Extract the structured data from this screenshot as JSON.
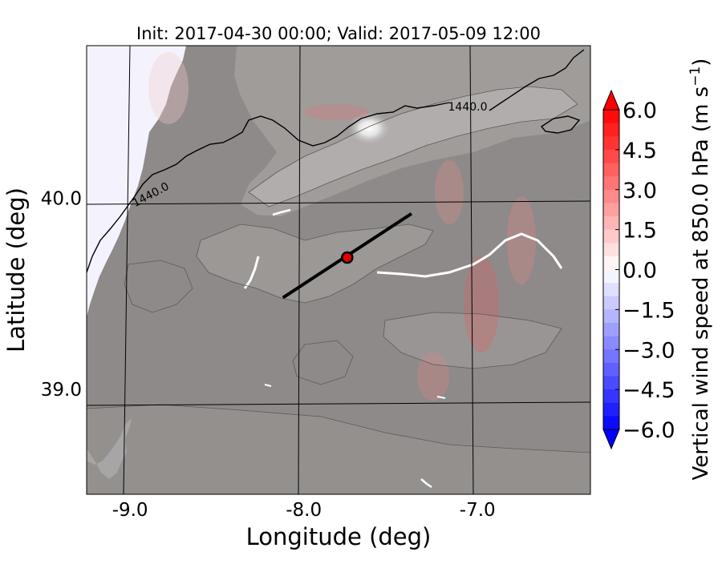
{
  "chart_data": {
    "type": "heatmap",
    "title": "Init: 2017-04-30 00:00; Valid: 2017-05-09 12:00",
    "xlabel": "Longitude (deg)",
    "ylabel": "Latitude (deg)",
    "xlim": [
      -9.25,
      -6.35
    ],
    "ylim": [
      38.45,
      40.8
    ],
    "x_ticks": [
      {
        "value": -9.0,
        "label": "-9.0"
      },
      {
        "value": -8.0,
        "label": "-8.0"
      },
      {
        "value": -7.0,
        "label": "-7.0"
      }
    ],
    "y_ticks": [
      {
        "value": 39.0,
        "label": "39.0"
      },
      {
        "value": 40.0,
        "label": "40.0"
      }
    ],
    "contour_labels": [
      {
        "text": "1440.0",
        "lon": -8.95,
        "lat": 40.02
      },
      {
        "text": "1440.0",
        "lon": -7.53,
        "lat": 40.52
      }
    ],
    "cross_section": {
      "start": {
        "lon": -8.12,
        "lat": 39.48
      },
      "end": {
        "lon": -7.38,
        "lat": 39.92
      },
      "marker": {
        "lon": -7.75,
        "lat": 39.69
      }
    },
    "colorbar": {
      "label": "Vertical wind speed at 850.0 hPa (m s$^{-1}$)",
      "label_main": "Vertical wind speed at 850.0 hPa (m s",
      "label_sup": "−1",
      "label_close": ")",
      "min": -6.0,
      "max": 6.0,
      "tick_values": [
        6.0,
        4.5,
        3.0,
        1.5,
        0.0,
        -1.5,
        -3.0,
        -4.5,
        -6.0
      ],
      "tick_labels": [
        "6.0",
        "4.5",
        "3.0",
        "1.5",
        "0.0",
        "−1.5",
        "−3.0",
        "−4.5",
        "−6.0"
      ],
      "cmap": "bwr",
      "extend": "both",
      "color_max": "#ff0000",
      "color_mid": "#ffffff",
      "color_min": "#0000ff"
    }
  }
}
